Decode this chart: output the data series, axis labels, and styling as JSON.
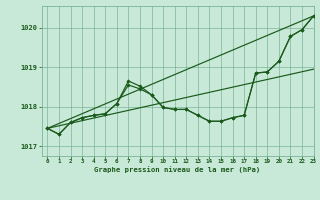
{
  "xlabel": "Graphe pression niveau de la mer (hPa)",
  "background_color": "#c8e8d8",
  "grid_color": "#6aaa8a",
  "line_color": "#1a5a1a",
  "xlim": [
    -0.5,
    23
  ],
  "ylim": [
    1016.75,
    1020.55
  ],
  "yticks": [
    1017,
    1018,
    1019,
    1020
  ],
  "xticks": [
    0,
    1,
    2,
    3,
    4,
    5,
    6,
    7,
    8,
    9,
    10,
    11,
    12,
    13,
    14,
    15,
    16,
    17,
    18,
    19,
    20,
    21,
    22,
    23
  ],
  "series_main": {
    "x": [
      0,
      1,
      2,
      3,
      4,
      5,
      6,
      7,
      8,
      9,
      10,
      11,
      12,
      13,
      14,
      15,
      16,
      17,
      18,
      19,
      20,
      21,
      22,
      23
    ],
    "y": [
      1017.45,
      1017.3,
      1017.6,
      1017.72,
      1017.78,
      1017.82,
      1018.08,
      1018.55,
      1018.45,
      1018.3,
      1017.98,
      1017.93,
      1017.93,
      1017.78,
      1017.63,
      1017.63,
      1017.72,
      1017.78,
      1018.85,
      1018.88,
      1019.15,
      1019.78,
      1019.95,
      1020.3
    ]
  },
  "series_peak": {
    "x": [
      0,
      1,
      2,
      3,
      4,
      5,
      6,
      7,
      8,
      9,
      10,
      11,
      12,
      13,
      14,
      15,
      16,
      17,
      18,
      19,
      20,
      21,
      22,
      23
    ],
    "y": [
      1017.45,
      1017.3,
      1017.6,
      1017.72,
      1017.78,
      1017.82,
      1018.08,
      1018.65,
      1018.52,
      1018.3,
      1017.98,
      1017.93,
      1017.93,
      1017.78,
      1017.63,
      1017.63,
      1017.72,
      1017.78,
      1018.85,
      1018.88,
      1019.15,
      1019.78,
      1019.95,
      1020.3
    ]
  },
  "series_straight_high": {
    "x": [
      0,
      23
    ],
    "y": [
      1017.45,
      1020.3
    ]
  },
  "series_straight_low": {
    "x": [
      0,
      23
    ],
    "y": [
      1017.45,
      1018.95
    ]
  }
}
